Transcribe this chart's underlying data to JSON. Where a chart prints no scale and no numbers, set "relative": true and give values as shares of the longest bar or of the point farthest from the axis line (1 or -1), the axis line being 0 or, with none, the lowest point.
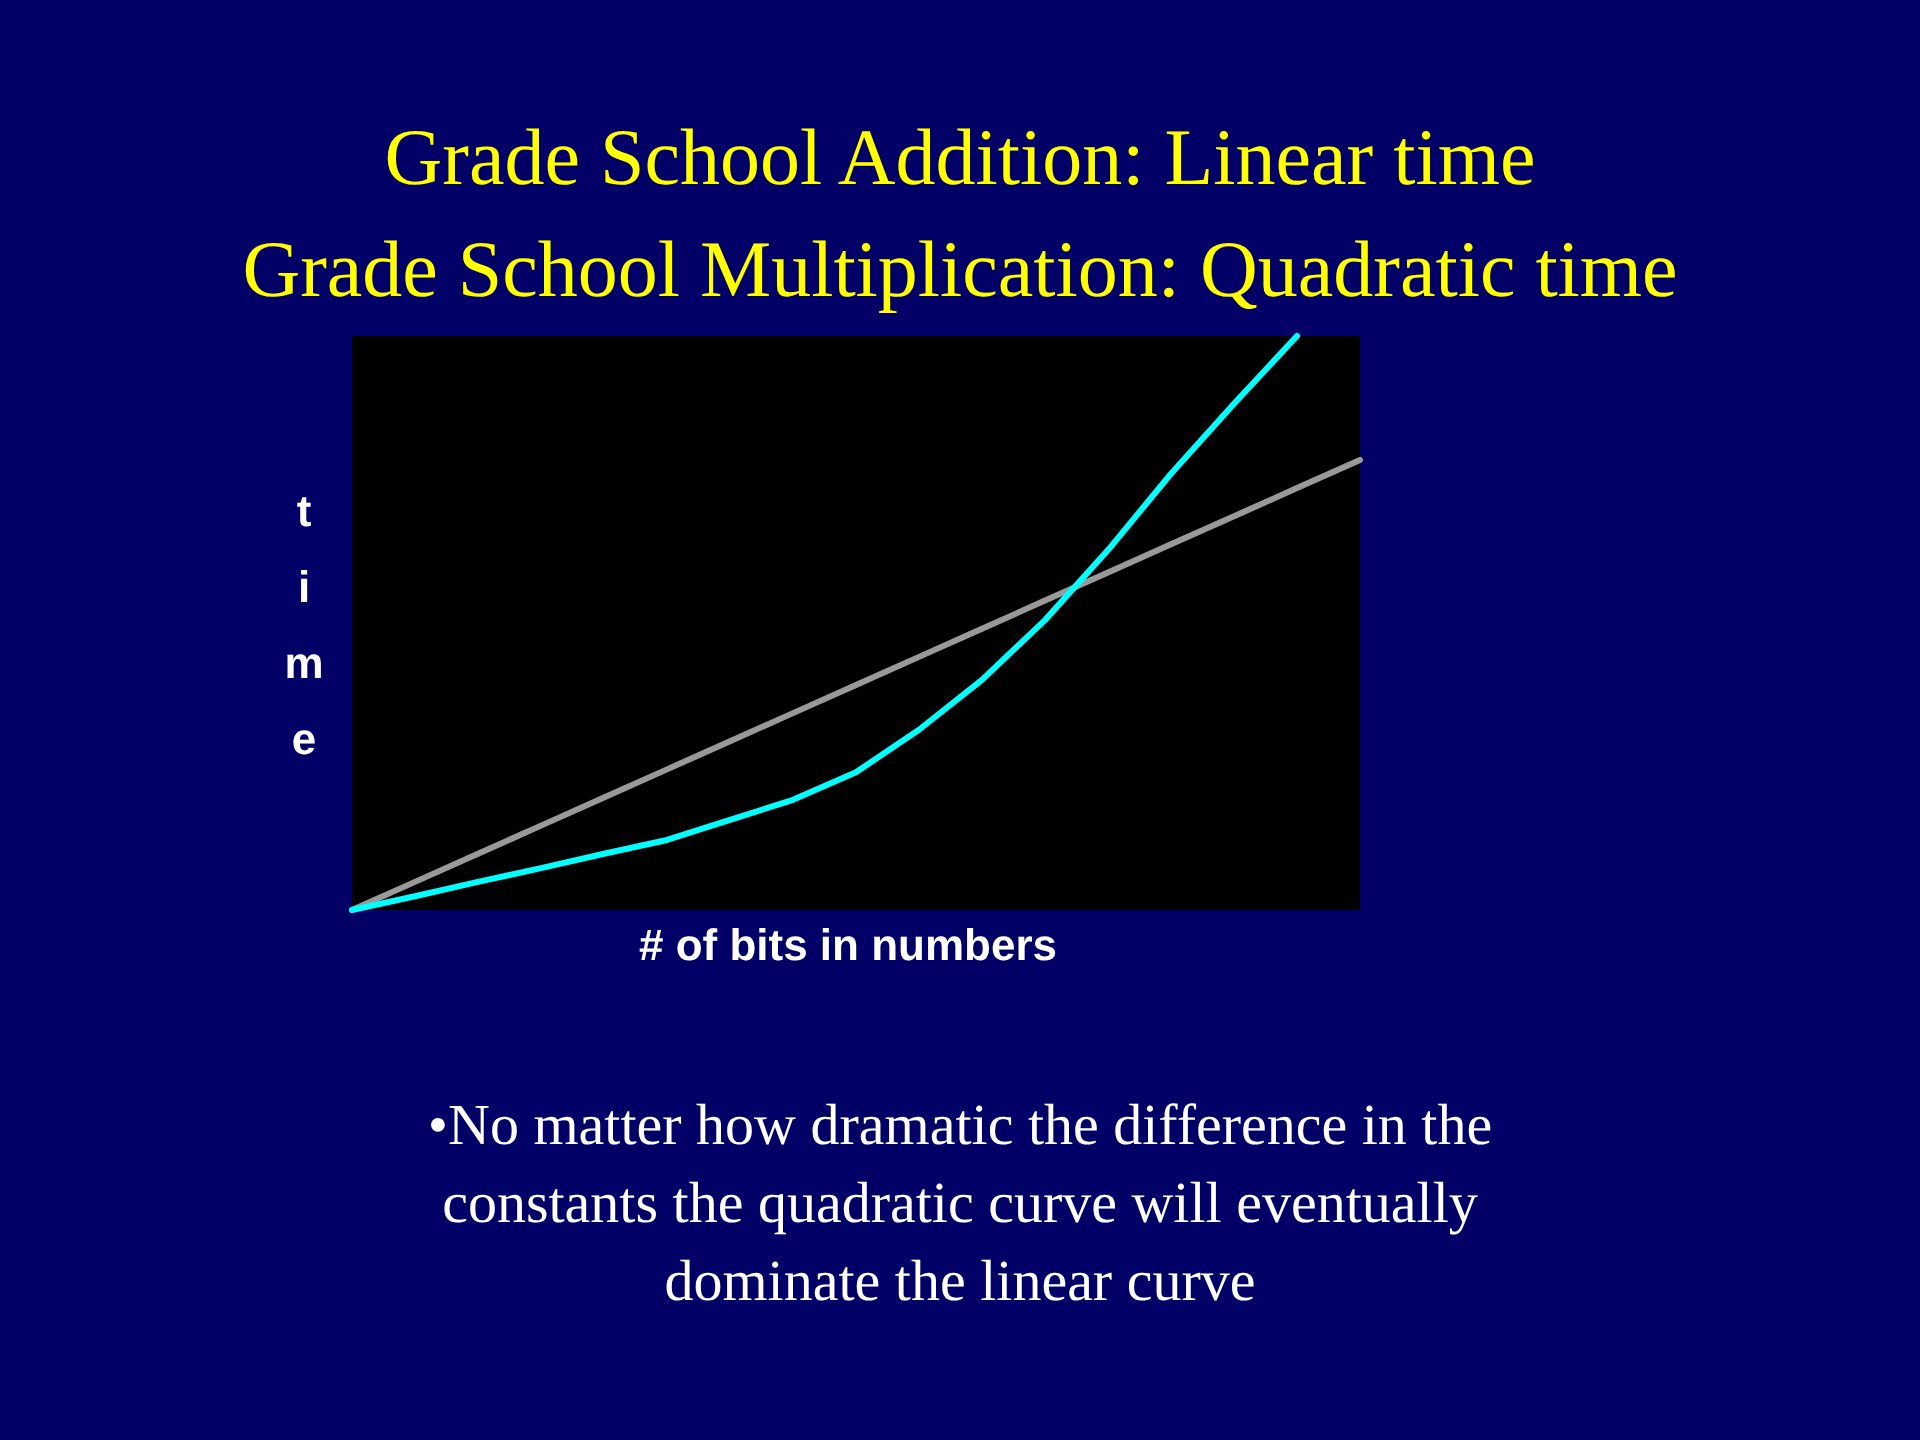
{
  "chart_data": {
    "type": "line",
    "title": "Grade School Addition: Linear time\nGrade School Multiplication: Quadratic time",
    "xlabel": "# of bits in numbers",
    "ylabel": "time",
    "relative": true,
    "categories": [
      null,
      null,
      null,
      null,
      null,
      null,
      null,
      null,
      null,
      null,
      null,
      null,
      null,
      null,
      null,
      null,
      null
    ],
    "series": [
      {
        "color": "#999999",
        "values": [
          0,
          0.049,
          0.098,
          0.147,
          0.196,
          0.245,
          0.294,
          0.343,
          0.392,
          0.441,
          0.49,
          0.539,
          0.588,
          0.637,
          0.686,
          0.735,
          0.784
        ]
      },
      {
        "color": "#00ffff",
        "values": [
          0,
          0.024,
          0.049,
          0.073,
          0.098,
          0.122,
          0.157,
          0.192,
          0.24,
          0.314,
          0.401,
          0.505,
          0.627,
          0.76,
          0.882,
          1,
          null
        ]
      }
    ],
    "annotations": [
      "•No matter how dramatic the difference in the constants the quadratic curve will eventually dominate the linear curve"
    ],
    "grid": false,
    "marker": "none",
    "line_style": "solid"
  }
}
